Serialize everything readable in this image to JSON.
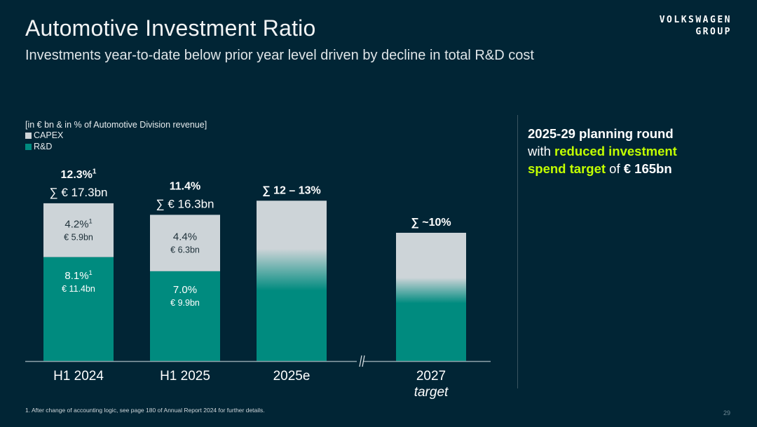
{
  "header": {
    "title": "Automotive Investment Ratio",
    "subtitle": "Investments year-to-date below prior year level driven by decline in total R&D cost",
    "logo_line1": "VOLKSWAGEN",
    "logo_line2": "GROUP"
  },
  "colors": {
    "background": "#012535",
    "capex": "#cdd4d8",
    "rnd": "#008b7f",
    "highlight": "#c2ff00"
  },
  "chart_data": {
    "type": "bar",
    "stacked": true,
    "unit_label": "[in € bn & in % of Automotive Division revenue]",
    "legend": [
      {
        "name": "CAPEX",
        "color": "#cdd4d8"
      },
      {
        "name": "R&D",
        "color": "#008b7f"
      }
    ],
    "categories": [
      "H1 2024",
      "H1 2025",
      "2025e",
      "2027"
    ],
    "category_sublabels": [
      "",
      "",
      "",
      "target"
    ],
    "axis_break_between": [
      "2025e",
      "2027"
    ],
    "series": [
      {
        "name": "R&D",
        "values_pct": [
          8.1,
          7.0,
          null,
          null
        ],
        "values_bn": [
          11.4,
          9.9,
          null,
          null
        ],
        "labels_pct": [
          "8.1%",
          "7.0%",
          "",
          ""
        ],
        "labels_bn": [
          "€ 11.4bn",
          "€ 9.9bn",
          "",
          ""
        ],
        "footnote_marks": [
          "1",
          "",
          "",
          ""
        ]
      },
      {
        "name": "CAPEX",
        "values_pct": [
          4.2,
          4.4,
          null,
          null
        ],
        "values_bn": [
          5.9,
          6.3,
          null,
          null
        ],
        "labels_pct": [
          "4.2%",
          "4.4%",
          "",
          ""
        ],
        "labels_bn": [
          "€ 5.9bn",
          "€ 6.3bn",
          "",
          ""
        ],
        "footnote_marks": [
          "1",
          "",
          "",
          ""
        ]
      }
    ],
    "totals_pct": [
      12.3,
      11.4,
      12.5,
      10.0
    ],
    "totals_bn": [
      17.3,
      16.3,
      null,
      null
    ],
    "total_labels_pct": [
      "12.3%",
      "11.4%",
      "∑ 12 – 13%",
      "∑ ~10%"
    ],
    "total_labels_bn": [
      "∑ € 17.3bn",
      "∑ € 16.3bn",
      "",
      ""
    ],
    "total_footnote_marks": [
      "1",
      "",
      "",
      ""
    ],
    "ranges_pct": [
      null,
      null,
      [
        12,
        13
      ],
      [
        10,
        10
      ]
    ],
    "gradient_bars": [
      false,
      false,
      true,
      true
    ],
    "ylim": [
      0,
      14
    ],
    "grid": false
  },
  "callout": {
    "line1": "2025-29 planning round",
    "with": "with ",
    "hl1": "reduced investment",
    "hl2": "spend target",
    "of": " of ",
    "amount": "€ 165bn"
  },
  "footnote": "1. After change of accounting logic, see page 180 of Annual Report 2024 for further details.",
  "page_number": "29"
}
